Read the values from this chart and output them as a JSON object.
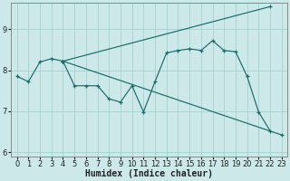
{
  "xlabel": "Humidex (Indice chaleur)",
  "bg_color": "#cce8e8",
  "grid_color": "#aad4d4",
  "line_color": "#1a6b6b",
  "xlim": [
    -0.5,
    23.5
  ],
  "ylim": [
    5.9,
    9.65
  ],
  "yticks": [
    6,
    7,
    8,
    9
  ],
  "xticks": [
    0,
    1,
    2,
    3,
    4,
    5,
    6,
    7,
    8,
    9,
    10,
    11,
    12,
    13,
    14,
    15,
    16,
    17,
    18,
    19,
    20,
    21,
    22,
    23
  ],
  "series1_x": [
    0,
    1,
    2,
    3,
    4,
    5,
    6,
    7,
    8,
    9,
    10,
    11,
    12,
    13,
    14,
    15,
    16,
    17,
    18,
    19,
    20,
    21,
    22
  ],
  "series1_y": [
    7.85,
    7.72,
    8.2,
    8.28,
    8.22,
    7.62,
    7.62,
    7.62,
    7.3,
    7.22,
    7.62,
    6.98,
    7.72,
    8.42,
    8.48,
    8.52,
    8.48,
    8.72,
    8.48,
    8.45,
    7.85,
    6.98,
    6.52
  ],
  "series2_x": [
    4,
    22
  ],
  "series2_y": [
    8.22,
    9.55
  ],
  "series3_x": [
    4,
    23
  ],
  "series3_y": [
    8.22,
    6.42
  ],
  "marker_size": 3.5,
  "lw": 0.85,
  "tick_fontsize": 6,
  "xlabel_fontsize": 7
}
